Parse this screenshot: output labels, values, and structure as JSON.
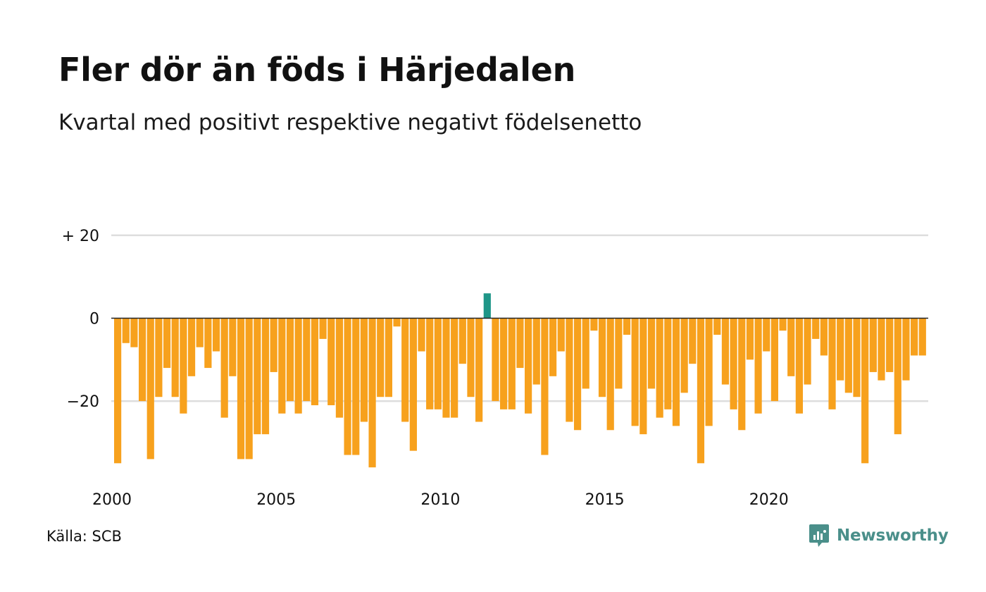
{
  "title": "Fler dör än föds i Härjedalen",
  "subtitle": "Kvartal med positivt respektive negativt födelsenetto",
  "source": "Källa: SCB",
  "brand": {
    "name": "Newsworthy",
    "icon": "newsworthy-logo-icon",
    "color": "#4a8f8a"
  },
  "colors": {
    "negative": "#f7a11d",
    "positive": "#1f9688",
    "gridline": "#dddddd",
    "zeroline": "#222222"
  },
  "chart_data": {
    "type": "bar",
    "xlabel": "",
    "ylabel": "",
    "ylim": [
      -38,
      25
    ],
    "yticks": [
      {
        "value": 20,
        "label": "+ 20"
      },
      {
        "value": 0,
        "label": "0"
      },
      {
        "value": -20,
        "label": "−20"
      }
    ],
    "xticks": [
      "2000",
      "2005",
      "2010",
      "2015",
      "2020"
    ],
    "x_start": "2000 Q1",
    "grid": true,
    "legend": "none",
    "values": [
      -35,
      -6,
      -7,
      -20,
      -34,
      -19,
      -12,
      -19,
      -23,
      -14,
      -7,
      -12,
      -8,
      -24,
      -14,
      -34,
      -34,
      -28,
      -28,
      -13,
      -23,
      -20,
      -23,
      -20,
      -21,
      -5,
      -21,
      -24,
      -33,
      -33,
      -25,
      -36,
      -19,
      -19,
      -2,
      -25,
      -32,
      -8,
      -22,
      -22,
      -24,
      -24,
      -11,
      -19,
      -25,
      6,
      -20,
      -22,
      -22,
      -12,
      -23,
      -16,
      -33,
      -14,
      -8,
      -25,
      -27,
      -17,
      -3,
      -19,
      -27,
      -17,
      -4,
      -26,
      -28,
      -17,
      -24,
      -22,
      -26,
      -18,
      -11,
      -35,
      -26,
      -4,
      -16,
      -22,
      -27,
      -10,
      -23,
      -8,
      -20,
      -3,
      -14,
      -23,
      -16,
      -5,
      -9,
      -22,
      -15,
      -18,
      -19,
      -35,
      -13,
      -15,
      -13,
      -28,
      -15,
      -9,
      -9
    ]
  }
}
